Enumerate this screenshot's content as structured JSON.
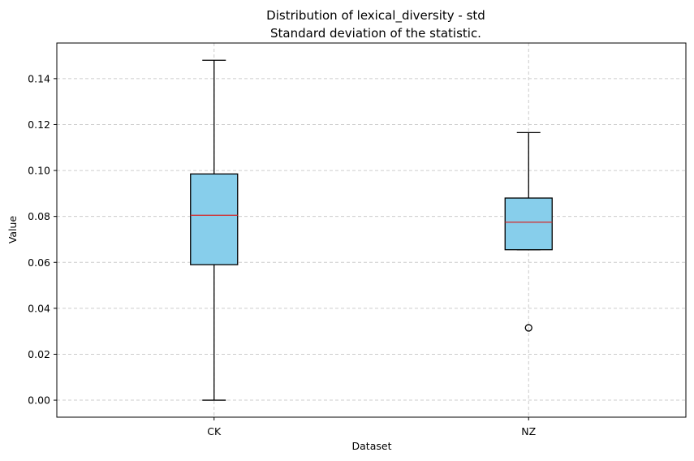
{
  "chart_data": {
    "type": "box",
    "title": "Distribution of lexical_diversity - std",
    "subtitle": "Standard deviation of the statistic.",
    "xlabel": "Dataset",
    "ylabel": "Value",
    "ylim": [
      -0.0074,
      0.1555
    ],
    "yticks": [
      0.0,
      0.02,
      0.04,
      0.06,
      0.08,
      0.1,
      0.12,
      0.14
    ],
    "ytick_labels": [
      "0.00",
      "0.02",
      "0.04",
      "0.06",
      "0.08",
      "0.10",
      "0.12",
      "0.14"
    ],
    "grid": true,
    "colors": {
      "box_fill": "#87ceeb",
      "median": "#d62728",
      "grid": "#cccccc"
    },
    "categories": [
      "CK",
      "NZ"
    ],
    "boxes": [
      {
        "label": "CK",
        "whisker_low": 0.0,
        "q1": 0.059,
        "median": 0.0805,
        "q3": 0.0985,
        "whisker_high": 0.148,
        "outliers": []
      },
      {
        "label": "NZ",
        "whisker_low": 0.0655,
        "q1": 0.0655,
        "median": 0.0775,
        "q3": 0.088,
        "whisker_high": 0.1165,
        "outliers": [
          0.0315
        ]
      }
    ]
  }
}
